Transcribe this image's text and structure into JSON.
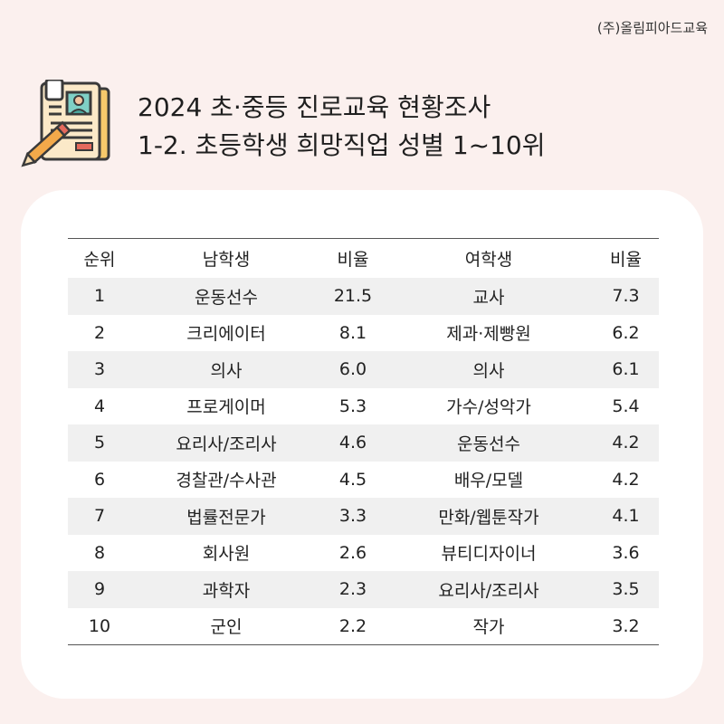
{
  "brand": "(주)올림피아드교육",
  "title": {
    "line1": "2024 초·중등 진로교육 현황조사",
    "line2": "1-2. 초등학생 희망직업 성별 1~10위"
  },
  "icon": "clipboard-pencil-icon",
  "chart_data": {
    "type": "table",
    "columns": [
      "순위",
      "남학생",
      "비율",
      "여학생",
      "비율"
    ],
    "rows": [
      {
        "rank": "1",
        "male": "운동선수",
        "male_ratio": "21.5",
        "female": "교사",
        "female_ratio": "7.3"
      },
      {
        "rank": "2",
        "male": "크리에이터",
        "male_ratio": "8.1",
        "female": "제과·제빵원",
        "female_ratio": "6.2"
      },
      {
        "rank": "3",
        "male": "의사",
        "male_ratio": "6.0",
        "female": "의사",
        "female_ratio": "6.1"
      },
      {
        "rank": "4",
        "male": "프로게이머",
        "male_ratio": "5.3",
        "female": "가수/성악가",
        "female_ratio": "5.4"
      },
      {
        "rank": "5",
        "male": "요리사/조리사",
        "male_ratio": "4.6",
        "female": "운동선수",
        "female_ratio": "4.2"
      },
      {
        "rank": "6",
        "male": "경찰관/수사관",
        "male_ratio": "4.5",
        "female": "배우/모델",
        "female_ratio": "4.2"
      },
      {
        "rank": "7",
        "male": "법률전문가",
        "male_ratio": "3.3",
        "female": "만화/웹툰작가",
        "female_ratio": "4.1"
      },
      {
        "rank": "8",
        "male": "회사원",
        "male_ratio": "2.6",
        "female": "뷰티디자이너",
        "female_ratio": "3.6"
      },
      {
        "rank": "9",
        "male": "과학자",
        "male_ratio": "2.3",
        "female": "요리사/조리사",
        "female_ratio": "3.5"
      },
      {
        "rank": "10",
        "male": "군인",
        "male_ratio": "2.2",
        "female": "작가",
        "female_ratio": "3.2"
      }
    ]
  }
}
